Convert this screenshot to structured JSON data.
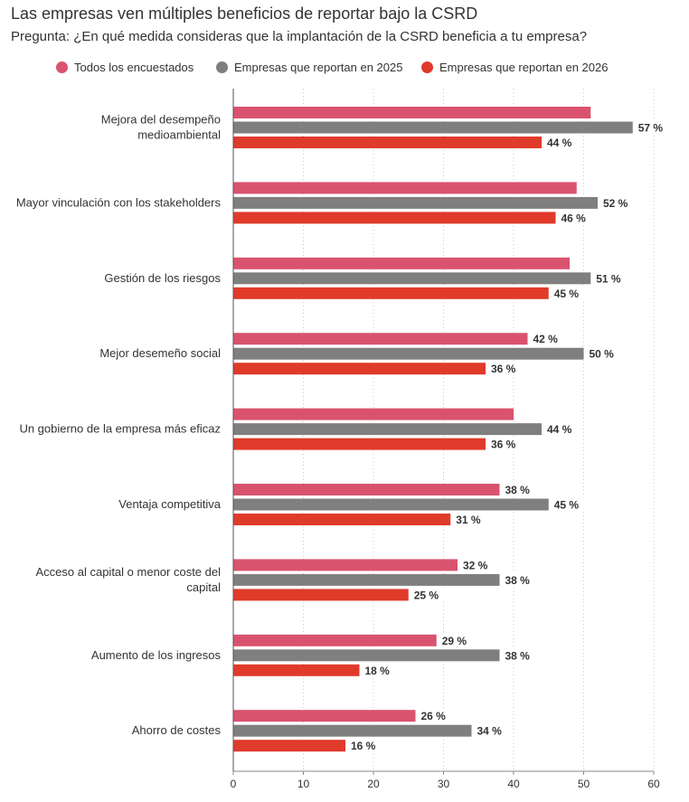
{
  "header": {
    "title": "Las empresas ven múltiples beneficios de reportar bajo la CSRD",
    "subtitle": "Pregunta: ¿En qué medida consideras que la implantación de la CSRD beneficia a tu empresa?"
  },
  "legend": [
    {
      "label": "Todos los encuestados",
      "color": "#d9536f"
    },
    {
      "label": "Empresas que reportan en 2025",
      "color": "#7f7f7f"
    },
    {
      "label": "Empresas que reportan en 2026",
      "color": "#e03a2b"
    }
  ],
  "chart_data": {
    "type": "bar",
    "orientation": "horizontal",
    "title": "Las empresas ven múltiples beneficios de reportar bajo la CSRD",
    "subtitle": "Pregunta: ¿En qué medida consideras que la implantación de la CSRD beneficia a tu empresa?",
    "categories": [
      [
        "Mejora del desempeño",
        "medioambiental"
      ],
      [
        "Mayor vinculación con los stakeholders"
      ],
      [
        "Gestión de los riesgos"
      ],
      [
        "Mejor desemeño social"
      ],
      [
        "Un gobierno de la empresa más eficaz"
      ],
      [
        "Ventaja competitiva"
      ],
      [
        "Acceso al capital o menor coste del",
        "capital"
      ],
      [
        "Aumento de los ingresos"
      ],
      [
        "Ahorro de costes"
      ]
    ],
    "series": [
      {
        "name": "Todos los encuestados",
        "color": "#d9536f",
        "values": [
          51,
          49,
          48,
          42,
          40,
          38,
          32,
          29,
          26
        ],
        "labels": [
          "",
          "",
          "",
          "42 %",
          "",
          "38 %",
          "32 %",
          "29 %",
          "26 %"
        ]
      },
      {
        "name": "Empresas que reportan en 2025",
        "color": "#7f7f7f",
        "values": [
          57,
          52,
          51,
          50,
          44,
          45,
          38,
          38,
          34
        ],
        "labels": [
          "57 %",
          "52 %",
          "51 %",
          "50 %",
          "44 %",
          "45 %",
          "38 %",
          "38 %",
          "34 %"
        ]
      },
      {
        "name": "Empresas que reportan en 2026",
        "color": "#e03a2b",
        "values": [
          44,
          46,
          45,
          36,
          36,
          31,
          25,
          18,
          16
        ],
        "labels": [
          "44 %",
          "46 %",
          "45 %",
          "36 %",
          "36 %",
          "31 %",
          "25 %",
          "18 %",
          "16 %"
        ]
      }
    ],
    "xlim": [
      0,
      60
    ],
    "xticks": [
      "0",
      "10",
      "20",
      "30",
      "40",
      "50",
      "60"
    ],
    "xlabel": "",
    "ylabel": "",
    "grid": "vertical-dotted",
    "legend_position": "top"
  }
}
